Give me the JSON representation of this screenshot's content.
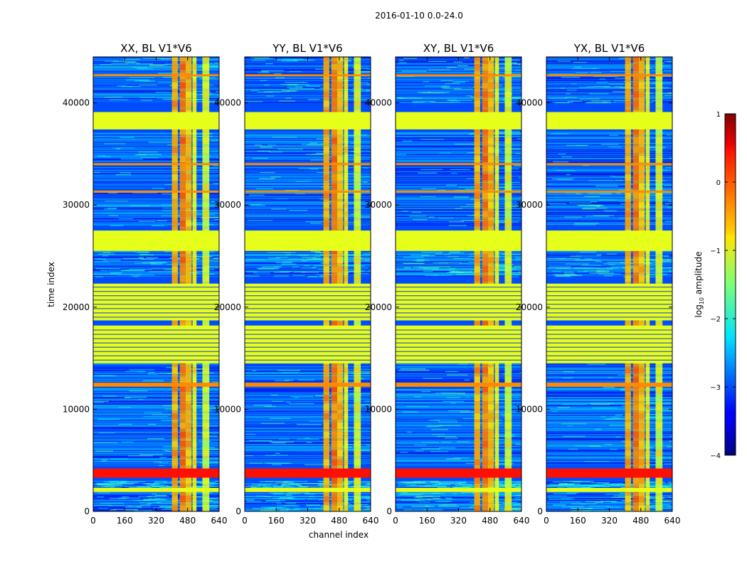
{
  "chart_data": {
    "type": "heatmap",
    "suptitle": "2016-01-10 0.0-24.0",
    "xlabel": "channel index",
    "ylabel": "time index",
    "xlim": [
      0,
      640
    ],
    "ylim": [
      0,
      44500
    ],
    "xticks": [
      0,
      160,
      320,
      480,
      640
    ],
    "yticks": [
      0,
      10000,
      20000,
      30000,
      40000
    ],
    "colorscale": "jet",
    "colorbar": {
      "label": "log10 amplitude",
      "label_base": "log",
      "label_sub": "10",
      "label_rest": " amplitude",
      "range": [
        -4,
        1
      ],
      "ticks": [
        1,
        0,
        -1,
        -2,
        -3,
        -4
      ],
      "tick_labels": [
        "1",
        "0",
        "−1",
        "−2",
        "−3",
        "−4"
      ]
    },
    "panels": [
      {
        "title": "XX, BL V1*V6"
      },
      {
        "title": "YY, BL V1*V6"
      },
      {
        "title": "XY, BL V1*V6"
      },
      {
        "title": "YX, BL V1*V6"
      }
    ],
    "background_level": -3.0,
    "noisy_bands": [
      [
        0,
        1900
      ],
      [
        2300,
        3000
      ],
      [
        4500,
        14500
      ],
      [
        23000,
        25500
      ],
      [
        28000,
        37200
      ],
      [
        40000,
        44500
      ]
    ],
    "flagged_rows": [
      {
        "y0": 1900,
        "y1": 2300,
        "value": -1.0
      },
      {
        "y0": 14500,
        "y1": 18200,
        "value": -1.0
      },
      {
        "y0": 18700,
        "y1": 22300,
        "value": -1.0
      },
      {
        "y0": 25500,
        "y1": 27500,
        "value": -1.0
      },
      {
        "y0": 37400,
        "y1": 39100,
        "value": -1.0
      }
    ],
    "rfi_rows": [
      {
        "y0": 3300,
        "y1": 4200,
        "value": 0.3
      },
      {
        "y0": 12200,
        "y1": 12600,
        "value": -0.3
      },
      {
        "y0": 31200,
        "y1": 31400,
        "value": -0.3
      },
      {
        "y0": 33900,
        "y1": 34100,
        "value": -0.3
      },
      {
        "y0": 42600,
        "y1": 42800,
        "value": -0.3
      }
    ],
    "rfi_channels": [
      {
        "x0": 400,
        "x1": 430,
        "value": -0.5
      },
      {
        "x0": 440,
        "x1": 470,
        "value": -0.3
      },
      {
        "x0": 470,
        "x1": 500,
        "value": -0.6
      },
      {
        "x0": 505,
        "x1": 525,
        "value": -0.9
      },
      {
        "x0": 555,
        "x1": 590,
        "value": -1.1
      }
    ]
  }
}
